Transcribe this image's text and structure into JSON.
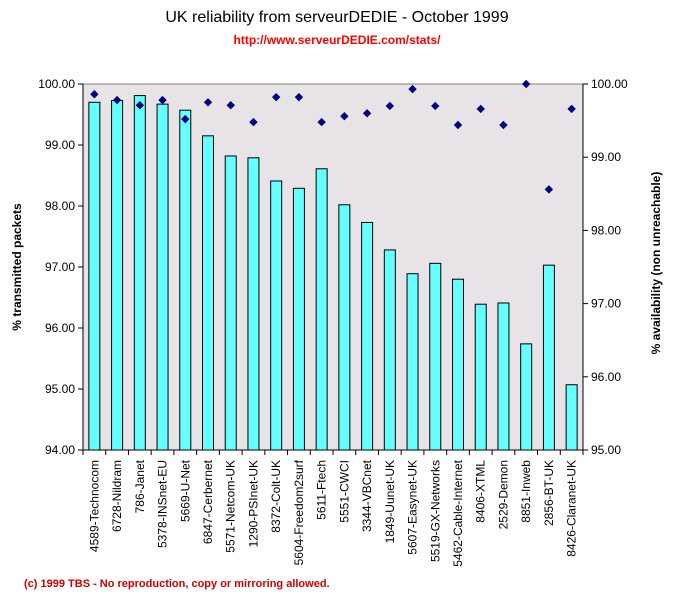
{
  "title": "UK reliability from serveurDEDIE - October 1999",
  "subtitle": "http://www.serveurDEDIE.com/stats/",
  "footer": "(c) 1999 TBS - No reproduction, copy or mirroring allowed.",
  "colors": {
    "plot_bg": "#e7e3e7",
    "bar": "#66ffff",
    "marker": "#000080"
  },
  "chart_data": {
    "type": "bar",
    "title": "UK reliability from serveurDEDIE - October 1999",
    "ylabel": "% transmitted packets",
    "y2label": "% availability (non unreachable)",
    "ylim": [
      94,
      100
    ],
    "y2lim": [
      95,
      100
    ],
    "yticks": [
      "94.00",
      "95.00",
      "96.00",
      "97.00",
      "98.00",
      "99.00",
      "100.00"
    ],
    "y2ticks": [
      "95.00",
      "96.00",
      "97.00",
      "98.00",
      "99.00",
      "100.00"
    ],
    "grid": false,
    "categories": [
      "4589-Technocom",
      "6728-Nildram",
      "786-Janet",
      "5378-INSnet-EU",
      "5669-U-Net",
      "6847-Cerbernet",
      "5571-Netcom-UK",
      "1290-PSInet-UK",
      "8372-Colt-UK",
      "5604-Freedom2surf",
      "5611-Ftech",
      "5551-CWCI",
      "3344-VBCnet",
      "1849-Uunet-UK",
      "5607-Easynet-UK",
      "5519-GX-Networks",
      "5462-Cable-Internet",
      "8406-XTML",
      "2529-Demon",
      "8851-Inweb",
      "2856-BT-UK",
      "8426-Claranet-UK"
    ],
    "series": [
      {
        "type": "bar",
        "axis": "left",
        "values": [
          99.7,
          99.73,
          99.81,
          99.67,
          99.57,
          99.15,
          98.82,
          98.79,
          98.41,
          98.29,
          98.61,
          98.02,
          97.73,
          97.28,
          96.89,
          97.06,
          96.8,
          96.39,
          96.41,
          95.74,
          97.03,
          95.07
        ]
      },
      {
        "type": "scatter",
        "axis": "right",
        "values": [
          99.86,
          99.78,
          99.71,
          99.78,
          99.52,
          99.75,
          99.71,
          99.48,
          99.82,
          99.82,
          99.48,
          99.56,
          99.6,
          99.7,
          99.93,
          99.7,
          99.44,
          99.66,
          99.44,
          100.0,
          98.56,
          99.66
        ]
      }
    ]
  }
}
